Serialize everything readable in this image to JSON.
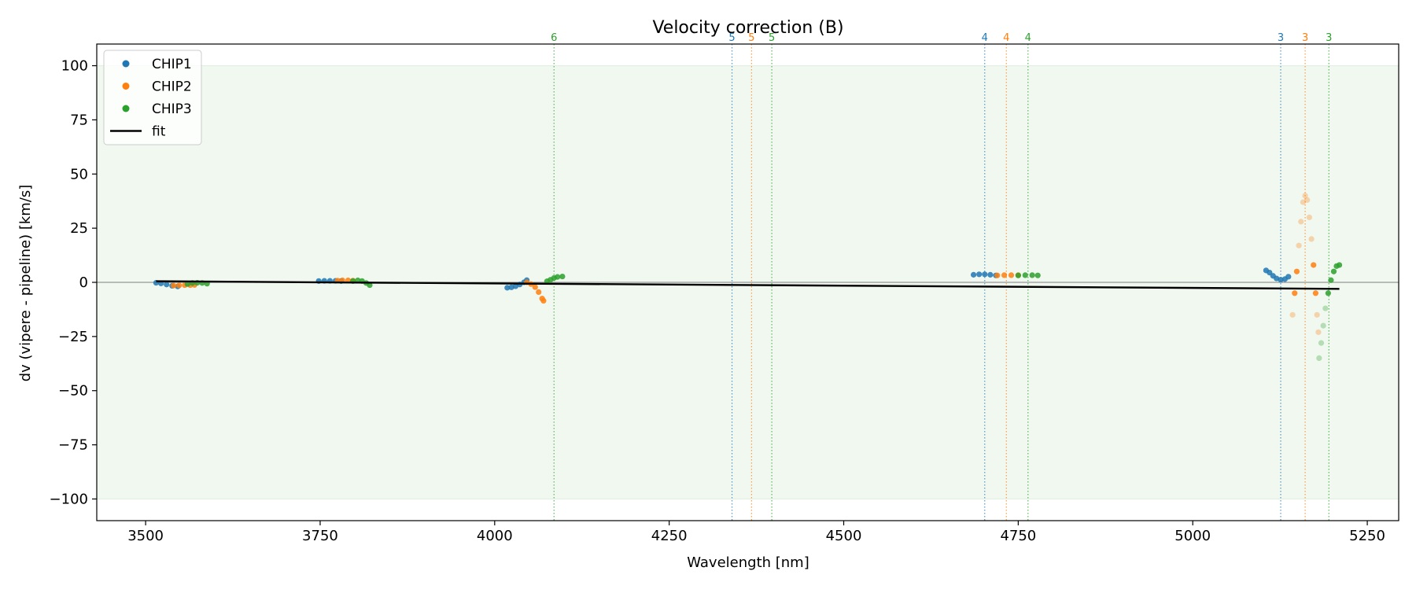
{
  "chart_data": {
    "type": "scatter",
    "title": "Velocity correction (B)",
    "xlabel": "Wavelength [nm]",
    "ylabel": "dv (vipere - pipeline) [km/s]",
    "xlim": [
      3430,
      5295
    ],
    "ylim": [
      -110,
      110
    ],
    "x_ticks": [
      3500,
      3750,
      4000,
      4250,
      4500,
      4750,
      5000,
      5250
    ],
    "x_tick_labels": [
      "3500",
      "3750",
      "4000",
      "4250",
      "4500",
      "4750",
      "5000",
      "5250"
    ],
    "y_ticks": [
      100,
      75,
      50,
      25,
      0,
      -25,
      -50,
      -75,
      -100
    ],
    "y_tick_labels": [
      "100",
      "75",
      "50",
      "25",
      "0",
      "−25",
      "−50",
      "−75",
      "−100"
    ],
    "shaded_band": {
      "y": [
        -100,
        100
      ],
      "color": "#2ca02c"
    },
    "zero_line": 0,
    "colors": {
      "CHIP1": "#1f77b4",
      "CHIP2": "#ff7f0e",
      "CHIP3": "#2ca02c",
      "fit": "#000000"
    },
    "legend": {
      "placement": "top-left",
      "entries": [
        {
          "label": "CHIP1",
          "kind": "point",
          "color": "#1f77b4"
        },
        {
          "label": "CHIP2",
          "kind": "point",
          "color": "#ff7f0e"
        },
        {
          "label": "CHIP3",
          "kind": "point",
          "color": "#2ca02c"
        },
        {
          "label": "fit",
          "kind": "line",
          "color": "#000000"
        }
      ]
    },
    "order_markers": [
      {
        "x": 4085,
        "label": "6",
        "color": "#2ca02c"
      },
      {
        "x": 4340,
        "label": "5",
        "color": "#1f77b4"
      },
      {
        "x": 4368,
        "label": "5",
        "color": "#ff7f0e"
      },
      {
        "x": 4397,
        "label": "5",
        "color": "#2ca02c"
      },
      {
        "x": 4702,
        "label": "4",
        "color": "#1f77b4"
      },
      {
        "x": 4733,
        "label": "4",
        "color": "#ff7f0e"
      },
      {
        "x": 4764,
        "label": "4",
        "color": "#2ca02c"
      },
      {
        "x": 5126,
        "label": "3",
        "color": "#1f77b4"
      },
      {
        "x": 5161,
        "label": "3",
        "color": "#ff7f0e"
      },
      {
        "x": 5195,
        "label": "3",
        "color": "#2ca02c"
      }
    ],
    "fit": {
      "x": [
        3515,
        5210
      ],
      "y": [
        0.5,
        -3.0
      ]
    },
    "series": [
      {
        "name": "CHIP1",
        "points": [
          [
            3515,
            -0.2
          ],
          [
            3522,
            -0.5
          ],
          [
            3530,
            -1.0
          ],
          [
            3538,
            -1.6
          ],
          [
            3546,
            -1.9
          ],
          [
            3748,
            0.6
          ],
          [
            3756,
            0.7
          ],
          [
            3764,
            0.7
          ],
          [
            3772,
            0.7
          ],
          [
            3780,
            0.6
          ],
          [
            4018,
            -2.5
          ],
          [
            4024,
            -2.3
          ],
          [
            4030,
            -1.8
          ],
          [
            4036,
            -1.0
          ],
          [
            4042,
            0.0
          ],
          [
            4046,
            1.0
          ],
          [
            4686,
            3.5
          ],
          [
            4694,
            3.7
          ],
          [
            4702,
            3.7
          ],
          [
            4710,
            3.5
          ],
          [
            4718,
            3.2
          ],
          [
            5105,
            5.5
          ],
          [
            5110,
            4.5
          ],
          [
            5115,
            3.0
          ],
          [
            5120,
            1.8
          ],
          [
            5126,
            1.2
          ],
          [
            5132,
            1.5
          ],
          [
            5137,
            2.6
          ]
        ]
      },
      {
        "name": "CHIP2",
        "points": [
          [
            3540,
            -1.5
          ],
          [
            3548,
            -1.4
          ],
          [
            3556,
            -1.3
          ],
          [
            3564,
            -1.3
          ],
          [
            3570,
            -1.2
          ],
          [
            3775,
            0.8
          ],
          [
            3782,
            0.9
          ],
          [
            3790,
            0.9
          ],
          [
            3797,
            0.8
          ],
          [
            4046,
            0.0
          ],
          [
            4052,
            -0.8
          ],
          [
            4058,
            -2.2
          ],
          [
            4063,
            -4.5
          ],
          [
            4068,
            -7.5
          ],
          [
            4070,
            -8.5
          ],
          [
            4720,
            3.2
          ],
          [
            4730,
            3.3
          ],
          [
            4740,
            3.3
          ],
          [
            4750,
            3.3
          ],
          [
            5143,
            -15.0
          ],
          [
            5146,
            -5.0
          ],
          [
            5149,
            5.0
          ],
          [
            5152,
            17.0
          ],
          [
            5155,
            28.0
          ],
          [
            5158,
            37.0
          ],
          [
            5161,
            40.0
          ],
          [
            5164,
            38.0
          ],
          [
            5167,
            30.0
          ],
          [
            5170,
            20.0
          ],
          [
            5173,
            8.0
          ],
          [
            5176,
            -5.0
          ],
          [
            5178,
            -15.0
          ],
          [
            5180,
            -23.0
          ]
        ]
      },
      {
        "name": "CHIP3",
        "points": [
          [
            3560,
            -0.8
          ],
          [
            3567,
            -0.3
          ],
          [
            3574,
            -0.2
          ],
          [
            3581,
            -0.3
          ],
          [
            3588,
            -0.6
          ],
          [
            3797,
            0.6
          ],
          [
            3804,
            0.9
          ],
          [
            3810,
            0.6
          ],
          [
            3816,
            -0.3
          ],
          [
            3821,
            -1.3
          ],
          [
            4075,
            0.5
          ],
          [
            4080,
            1.2
          ],
          [
            4085,
            2.0
          ],
          [
            4090,
            2.5
          ],
          [
            4097,
            2.7
          ],
          [
            4750,
            3.2
          ],
          [
            4760,
            3.3
          ],
          [
            4770,
            3.3
          ],
          [
            4778,
            3.2
          ],
          [
            5181,
            -35.0
          ],
          [
            5184,
            -28.0
          ],
          [
            5187,
            -20.0
          ],
          [
            5190,
            -12.0
          ],
          [
            5194,
            -5.0
          ],
          [
            5198,
            1.0
          ],
          [
            5202,
            5.0
          ],
          [
            5206,
            7.5
          ],
          [
            5210,
            8.0
          ]
        ]
      }
    ]
  }
}
